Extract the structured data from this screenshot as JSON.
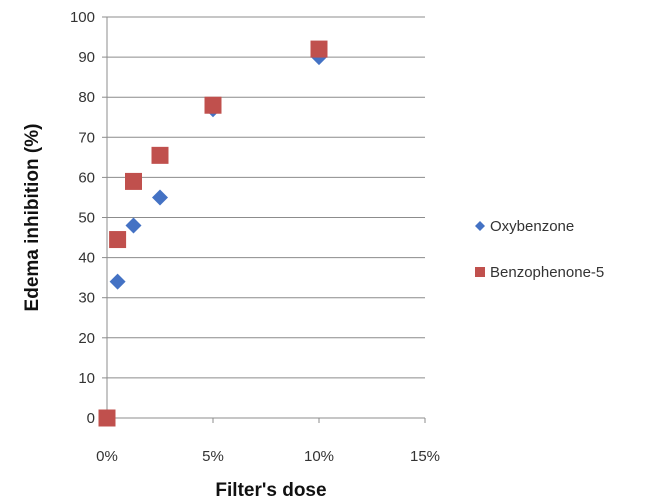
{
  "chart_data": {
    "type": "scatter",
    "title": "",
    "xlabel": "Filter's dose",
    "ylabel": "Edema inhibition (%)",
    "xlim": [
      0,
      0.15
    ],
    "ylim": [
      0,
      100
    ],
    "x_ticks": [
      0,
      0.05,
      0.1,
      0.15
    ],
    "x_tick_labels": [
      "0%",
      "5%",
      "10%",
      "15%"
    ],
    "y_ticks": [
      0,
      10,
      20,
      30,
      40,
      50,
      60,
      70,
      80,
      90,
      100
    ],
    "y_tick_labels": [
      "0",
      "10",
      "20",
      "30",
      "40",
      "50",
      "60",
      "70",
      "80",
      "90",
      "100"
    ],
    "grid": "horizontal",
    "legend": "right",
    "series": [
      {
        "name": "Oxybenzone",
        "marker": "diamond",
        "color": "#4472C4",
        "x": [
          0.005,
          0.0125,
          0.025,
          0.05,
          0.1
        ],
        "y": [
          34,
          48,
          55,
          77,
          90
        ]
      },
      {
        "name": "Benzophenone-5",
        "marker": "square",
        "color": "#C0504D",
        "x": [
          0,
          0.005,
          0.0125,
          0.025,
          0.05,
          0.1
        ],
        "y": [
          0,
          44.5,
          59,
          65.5,
          78,
          92
        ]
      }
    ]
  }
}
